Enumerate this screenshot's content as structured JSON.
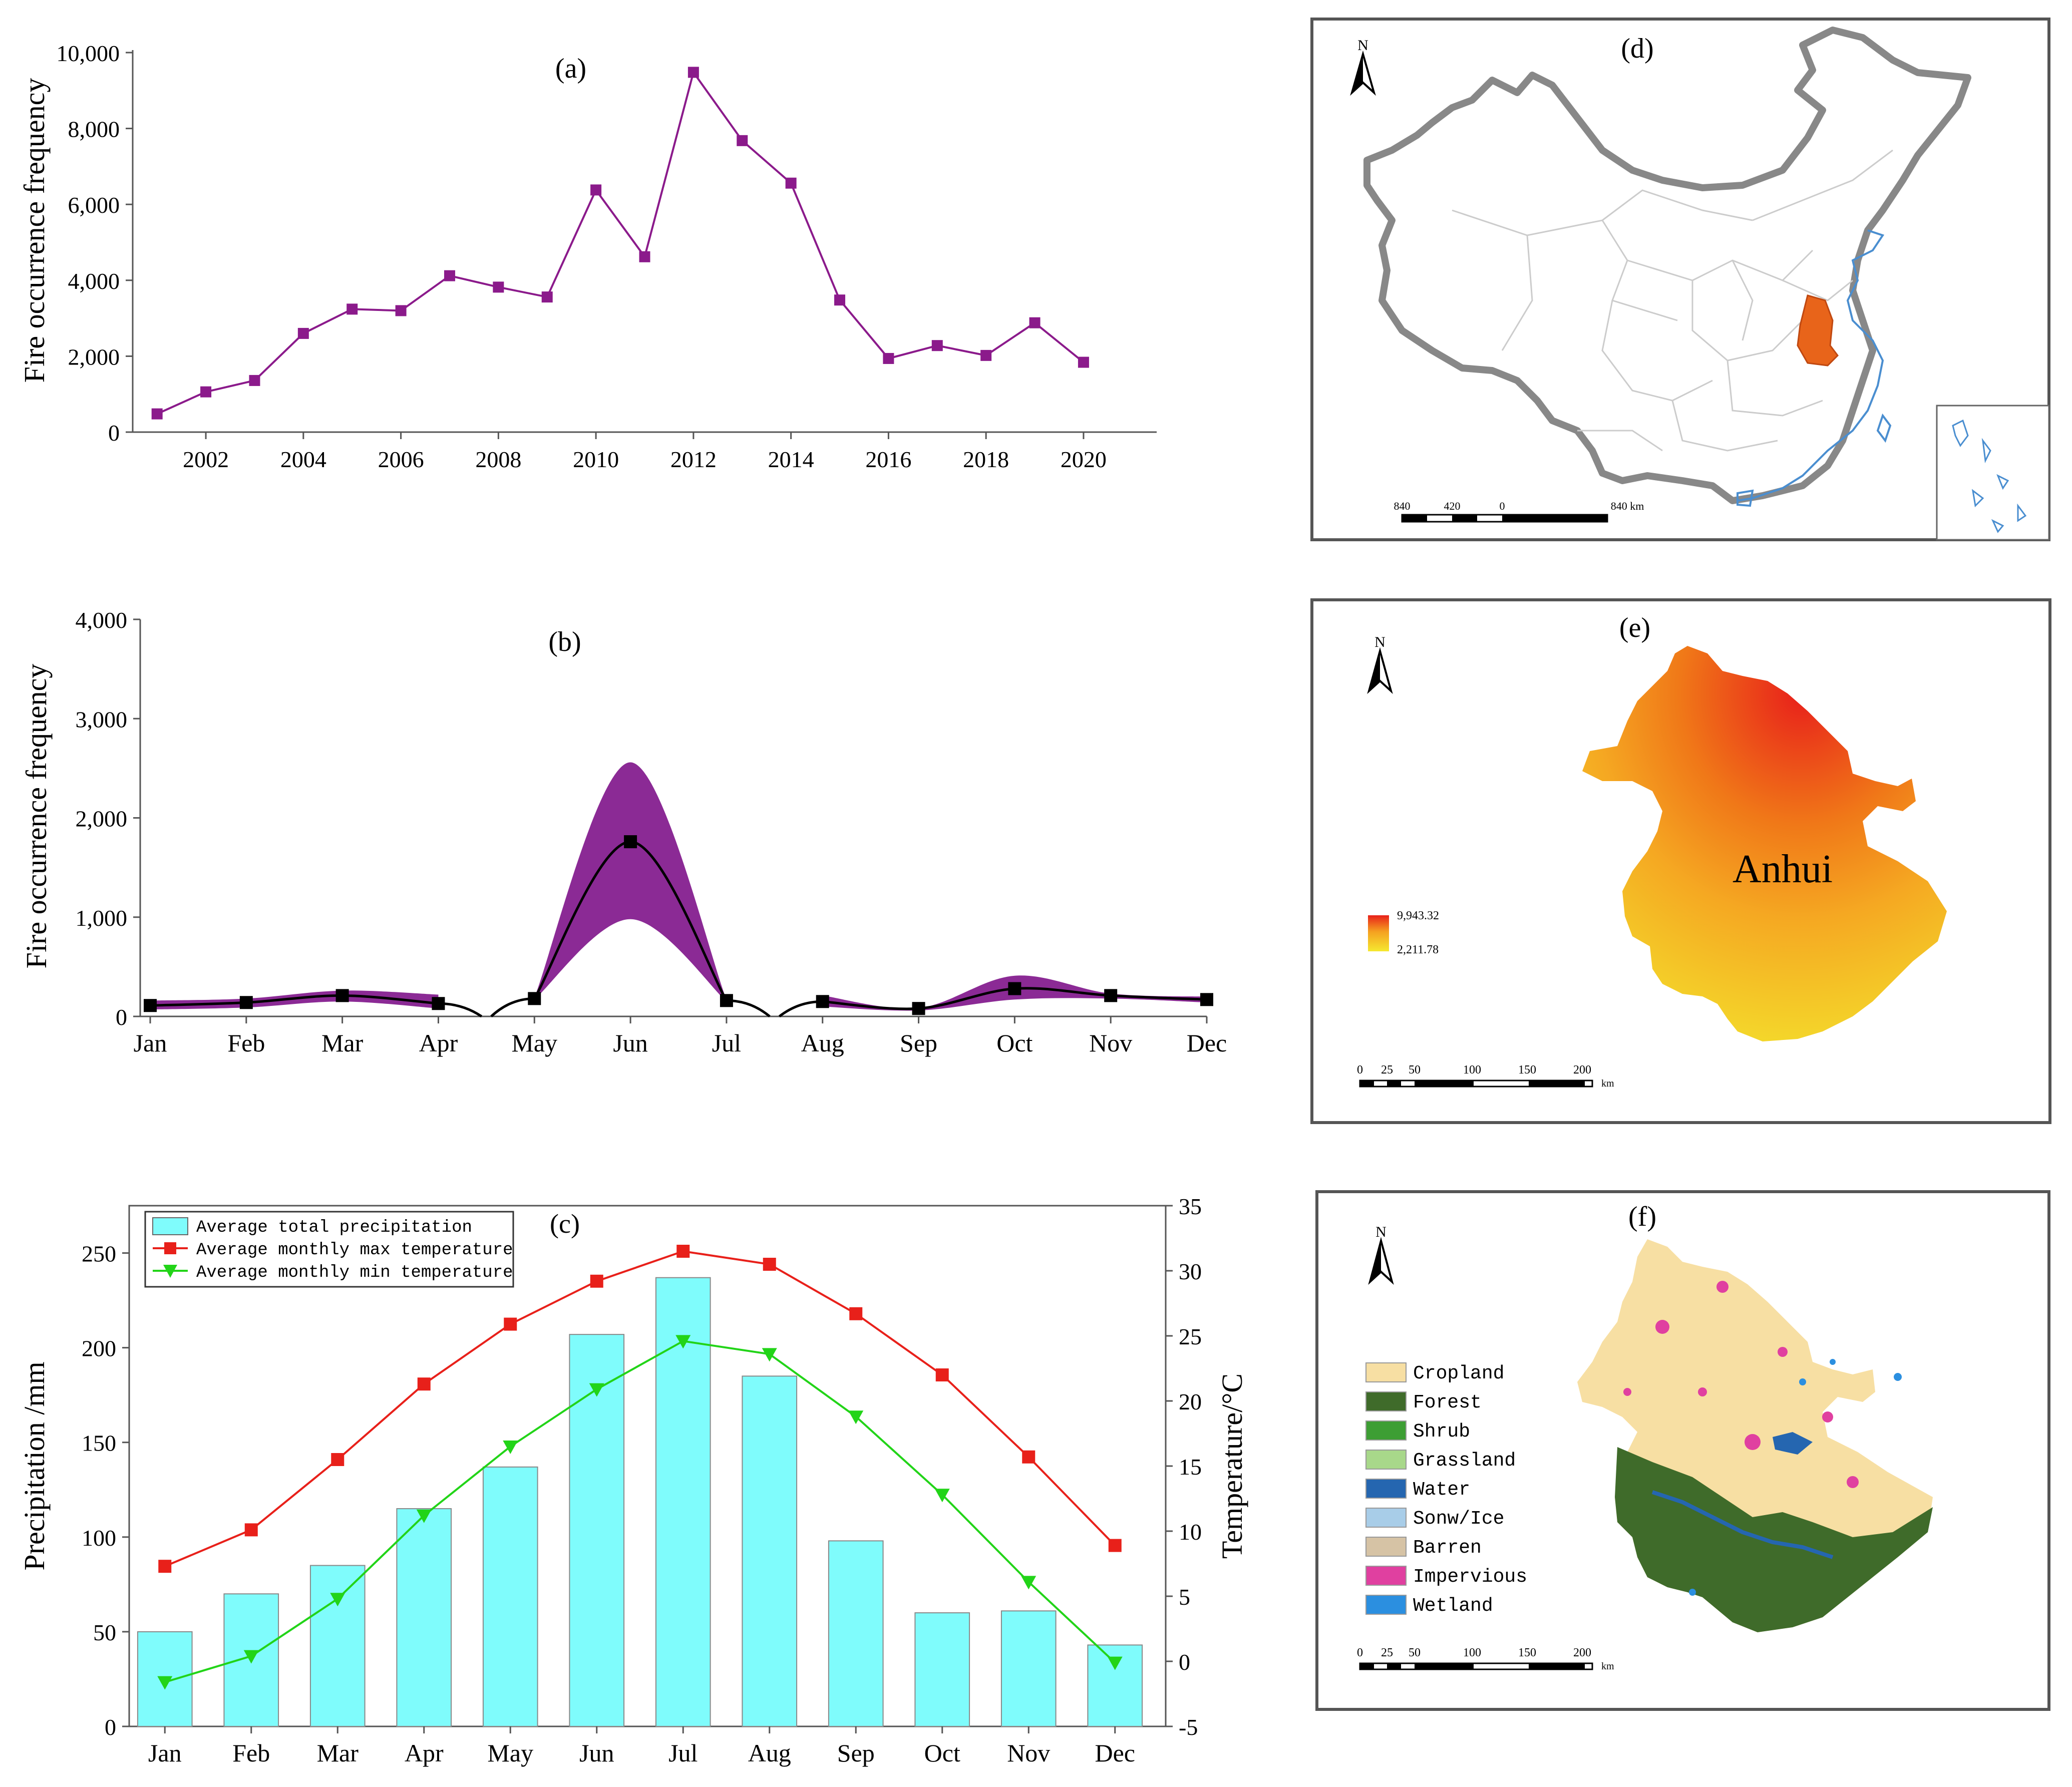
{
  "chart_data": [
    {
      "id": "a",
      "type": "line",
      "title": "(a)",
      "ylabel": "Fire occurrence frequency",
      "xlabel": "",
      "ylim": [
        0,
        10000
      ],
      "yticks": [
        "0",
        "2,000",
        "4,000",
        "6,000",
        "8,000",
        "10,000"
      ],
      "ytick_values": [
        0,
        2000,
        4000,
        6000,
        8000,
        10000
      ],
      "xlim": [
        2000.5,
        2021.5
      ],
      "xticks": [
        "2002",
        "2004",
        "2006",
        "2008",
        "2010",
        "2012",
        "2014",
        "2016",
        "2018",
        "2020"
      ],
      "xtick_values": [
        2002,
        2004,
        2006,
        2008,
        2010,
        2012,
        2014,
        2016,
        2018,
        2020
      ],
      "x": [
        2001,
        2002,
        2003,
        2004,
        2005,
        2006,
        2007,
        2008,
        2009,
        2010,
        2011,
        2012,
        2013,
        2014,
        2015,
        2016,
        2017,
        2018,
        2019,
        2020
      ],
      "values": [
        480,
        1060,
        1360,
        2600,
        3240,
        3200,
        4120,
        3820,
        3560,
        6380,
        4620,
        9480,
        7680,
        6560,
        3480,
        1940,
        2280,
        2020,
        2880,
        1840
      ],
      "color": "#8b1a8b"
    },
    {
      "id": "b",
      "type": "line",
      "title": "(b)",
      "ylabel": "Fire occurrence frequency",
      "ylim": [
        0,
        4000
      ],
      "yticks": [
        "0",
        "1,000",
        "2,000",
        "3,000",
        "4,000"
      ],
      "ytick_values": [
        0,
        1000,
        2000,
        3000,
        4000
      ],
      "categories": [
        "Jan",
        "Feb",
        "Mar",
        "Apr",
        "May",
        "Jun",
        "Jul",
        "Aug",
        "Sep",
        "Oct",
        "Nov",
        "Dec"
      ],
      "mean": [
        110,
        140,
        210,
        130,
        180,
        1760,
        160,
        150,
        80,
        280,
        210,
        170
      ],
      "band_upper": [
        160,
        180,
        260,
        220,
        190,
        2560,
        170,
        210,
        85,
        410,
        230,
        200
      ],
      "band_lower": [
        70,
        90,
        150,
        80,
        170,
        980,
        150,
        100,
        60,
        170,
        180,
        140
      ],
      "line_color": "#000000",
      "band_color": "#8b2a95"
    },
    {
      "id": "c",
      "type": "bar",
      "title": "(c)",
      "categories": [
        "Jan",
        "Feb",
        "Mar",
        "Apr",
        "May",
        "Jun",
        "Jul",
        "Aug",
        "Sep",
        "Oct",
        "Nov",
        "Dec"
      ],
      "ylabel": "Precipitation /mm",
      "ylim": [
        0,
        275
      ],
      "yticks": [
        "0",
        "50",
        "100",
        "150",
        "200",
        "250"
      ],
      "ytick_values": [
        0,
        50,
        100,
        150,
        200,
        250
      ],
      "y2label": "Temperature/°C",
      "y2lim": [
        -5,
        35
      ],
      "y2ticks": [
        "-5",
        "0",
        "5",
        "10",
        "15",
        "20",
        "25",
        "30",
        "35"
      ],
      "y2tick_values": [
        -5,
        0,
        5,
        10,
        15,
        20,
        25,
        30,
        35
      ],
      "series": [
        {
          "name": "Average total precipitation",
          "kind": "bar",
          "axis": "left",
          "color": "#7ffcfc",
          "values": [
            50,
            70,
            85,
            115,
            137,
            207,
            237,
            185,
            98,
            60,
            61,
            43
          ]
        },
        {
          "name": "Average monthly max temperature",
          "kind": "line",
          "axis": "right",
          "color": "#e8201a",
          "marker": "square",
          "values": [
            7.3,
            10.1,
            15.5,
            21.3,
            25.9,
            29.2,
            31.5,
            30.5,
            26.7,
            22.0,
            15.7,
            8.9
          ]
        },
        {
          "name": "Average monthly min temperature",
          "kind": "line",
          "axis": "right",
          "color": "#22d418",
          "marker": "triangle-down",
          "values": [
            -1.6,
            0.4,
            4.8,
            11.2,
            16.5,
            20.9,
            24.6,
            23.6,
            18.8,
            12.8,
            6.1,
            -0.1
          ]
        }
      ]
    }
  ],
  "maps": {
    "d": {
      "label": "(d)",
      "north": "N",
      "scale_labels": [
        "840",
        "420",
        "0",
        "840 km"
      ]
    },
    "e": {
      "label": "(e)",
      "north": "N",
      "province_name": "Anhui",
      "legend_max": "9,943.32",
      "legend_min": "2,211.78",
      "scale_labels": [
        "0",
        "25",
        "50",
        "100",
        "150",
        "200"
      ],
      "scale_unit": "km"
    },
    "f": {
      "label": "(f)",
      "north": "N",
      "legend": [
        {
          "label": "Cropland",
          "color": "#f7dfa3"
        },
        {
          "label": "Forest",
          "color": "#3f6b2a"
        },
        {
          "label": "Shrub",
          "color": "#3d9e34"
        },
        {
          "label": "Grassland",
          "color": "#a8d88a"
        },
        {
          "label": "Water",
          "color": "#2566b0"
        },
        {
          "label": "Sonw/Ice",
          "color": "#a8cde8"
        },
        {
          "label": "Barren",
          "color": "#d6c3a5"
        },
        {
          "label": "Impervious",
          "color": "#e040a0"
        },
        {
          "label": "Wetland",
          "color": "#2b8fe0"
        }
      ],
      "scale_labels": [
        "0",
        "25",
        "50",
        "100",
        "150",
        "200"
      ],
      "scale_unit": "km"
    }
  }
}
